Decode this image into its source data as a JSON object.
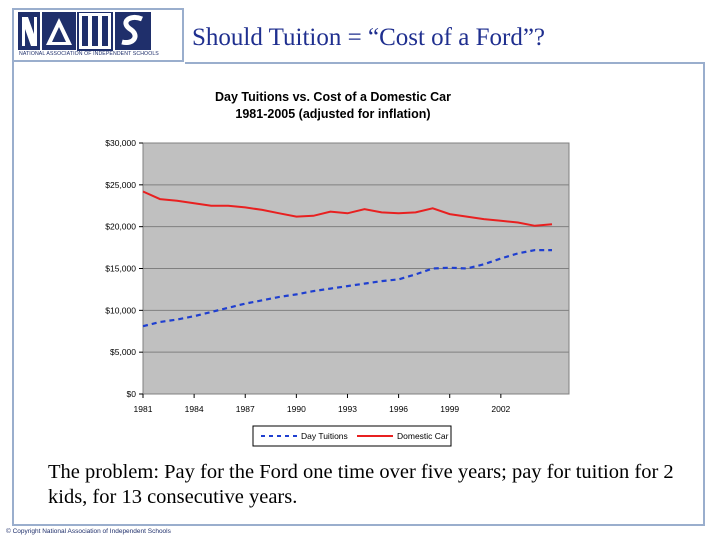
{
  "slide": {
    "title": "Should Tuition = “Cost of a Ford”?",
    "caption": "The problem: Pay for the Ford one time over five years; pay for tuition for 2 kids, for 13 consecutive years.",
    "copyright": "© Copyright National Association of Independent Schools"
  },
  "logo": {
    "caption": "NATIONAL ASSOCIATION OF INDEPENDENT SCHOOLS",
    "brand_color": "#1f2f6b"
  },
  "chart_data": {
    "type": "line",
    "title": "Day Tuitions vs. Cost of a Domestic Car",
    "subtitle": "1981-2005 (adjusted for inflation)",
    "x": [
      1981,
      1982,
      1983,
      1984,
      1985,
      1986,
      1987,
      1988,
      1989,
      1990,
      1991,
      1992,
      1993,
      1994,
      1995,
      1996,
      1997,
      1998,
      1999,
      2000,
      2001,
      2002,
      2003,
      2004,
      2005
    ],
    "x_tick_labels": [
      "1981",
      "1984",
      "1987",
      "1990",
      "1993",
      "1996",
      "1999",
      "2002"
    ],
    "x_tick_values": [
      1981,
      1984,
      1987,
      1990,
      1993,
      1996,
      1999,
      2002
    ],
    "y_tick_labels": [
      "$30,000",
      "$25,000",
      "$20,000",
      "$15,000",
      "$10,000",
      "$5,000",
      "$0"
    ],
    "y_tick_values": [
      30000,
      25000,
      20000,
      15000,
      10000,
      5000,
      0
    ],
    "ylim": [
      0,
      30000
    ],
    "xlim": [
      1981,
      2006
    ],
    "grid": "horizontal",
    "legend_position": "bottom",
    "plot_background": "#c0c0c0",
    "series": [
      {
        "name": "Day Tuitions",
        "style": "dashed",
        "color": "#1f3fd0",
        "values": [
          8100,
          8600,
          8900,
          9300,
          9800,
          10300,
          10800,
          11200,
          11600,
          11900,
          12300,
          12600,
          12900,
          13200,
          13500,
          13700,
          14300,
          15000,
          15100,
          15000,
          15500,
          16200,
          16800,
          17200,
          17200
        ]
      },
      {
        "name": "Domestic Car",
        "style": "solid",
        "color": "#e82020",
        "values": [
          24200,
          23300,
          23100,
          22800,
          22500,
          22500,
          22300,
          22000,
          21600,
          21200,
          21300,
          21800,
          21600,
          22100,
          21700,
          21600,
          21700,
          22200,
          21500,
          21200,
          20900,
          20700,
          20500,
          20100,
          20300
        ]
      }
    ]
  }
}
